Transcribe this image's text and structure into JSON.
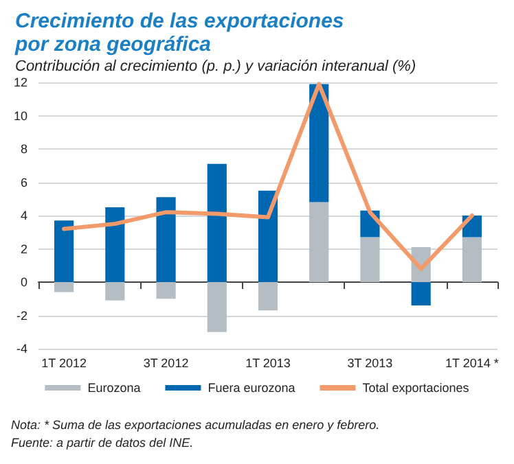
{
  "chart_data": {
    "type": "bar",
    "title": "Crecimiento de las exportaciones por zona geográfica",
    "subtitle": "Contribución al crecimiento (p. p.) y variación interanual (%)",
    "categories": [
      "1T 2012",
      null,
      "3T 2012",
      null,
      "1T 2013",
      null,
      "3T 2013",
      null,
      "1T 2014 *"
    ],
    "stacked": true,
    "series": [
      {
        "name": "Eurozona",
        "color": "#b3bdc3",
        "values": [
          -0.6,
          -1.1,
          -1.0,
          -3.0,
          -1.7,
          4.8,
          2.7,
          2.1,
          2.7
        ]
      },
      {
        "name": "Fuera eurozona",
        "color": "#0067b1",
        "values": [
          3.7,
          4.5,
          5.1,
          7.1,
          5.5,
          7.1,
          1.6,
          -1.4,
          1.3
        ]
      },
      {
        "name": "Total exportaciones",
        "type": "line",
        "color": "#f39a6b",
        "values": [
          3.2,
          3.5,
          4.2,
          4.1,
          3.9,
          11.9,
          4.2,
          0.8,
          4.0
        ]
      }
    ],
    "ylim": [
      -4,
      12
    ],
    "yticks": [
      -4,
      -2,
      0,
      2,
      4,
      6,
      8,
      10,
      12
    ],
    "grid": "y",
    "legend": "bottom",
    "marker": "none",
    "line_style": "solid",
    "annotations": [
      "Nota: * Suma de las exportaciones acumuladas en enero y febrero.",
      "Fuente: a partir de datos del INE."
    ]
  }
}
